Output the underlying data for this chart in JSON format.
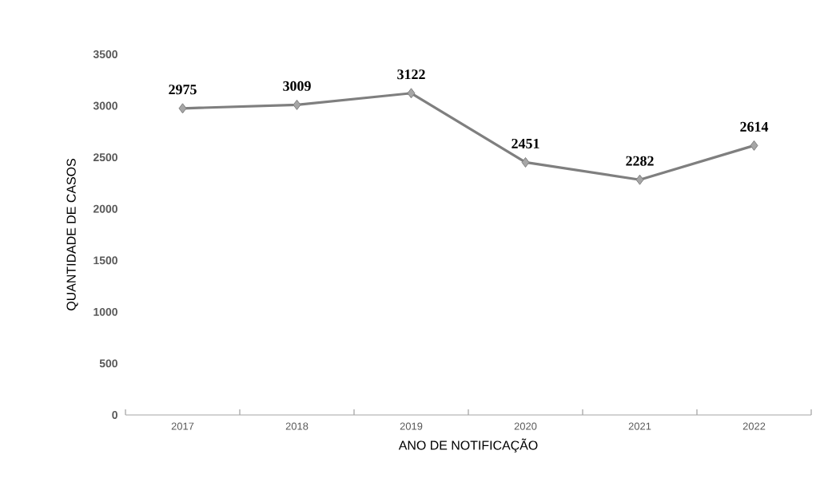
{
  "chart_data": {
    "type": "line",
    "xlabel": "ANO DE NOTIFICAÇÃO",
    "ylabel": "QUANTIDADE DE CASOS",
    "categories": [
      "2017",
      "2018",
      "2019",
      "2020",
      "2021",
      "2022"
    ],
    "values": [
      2975,
      3009,
      3122,
      2451,
      2282,
      2614
    ],
    "color": "#7f7f7f",
    "ylim": [
      0,
      3500
    ],
    "yticks": [
      0,
      500,
      1000,
      1500,
      2000,
      2500,
      3000,
      3500
    ],
    "marker": "diamond",
    "line_style": "solid",
    "data_labels": true
  }
}
